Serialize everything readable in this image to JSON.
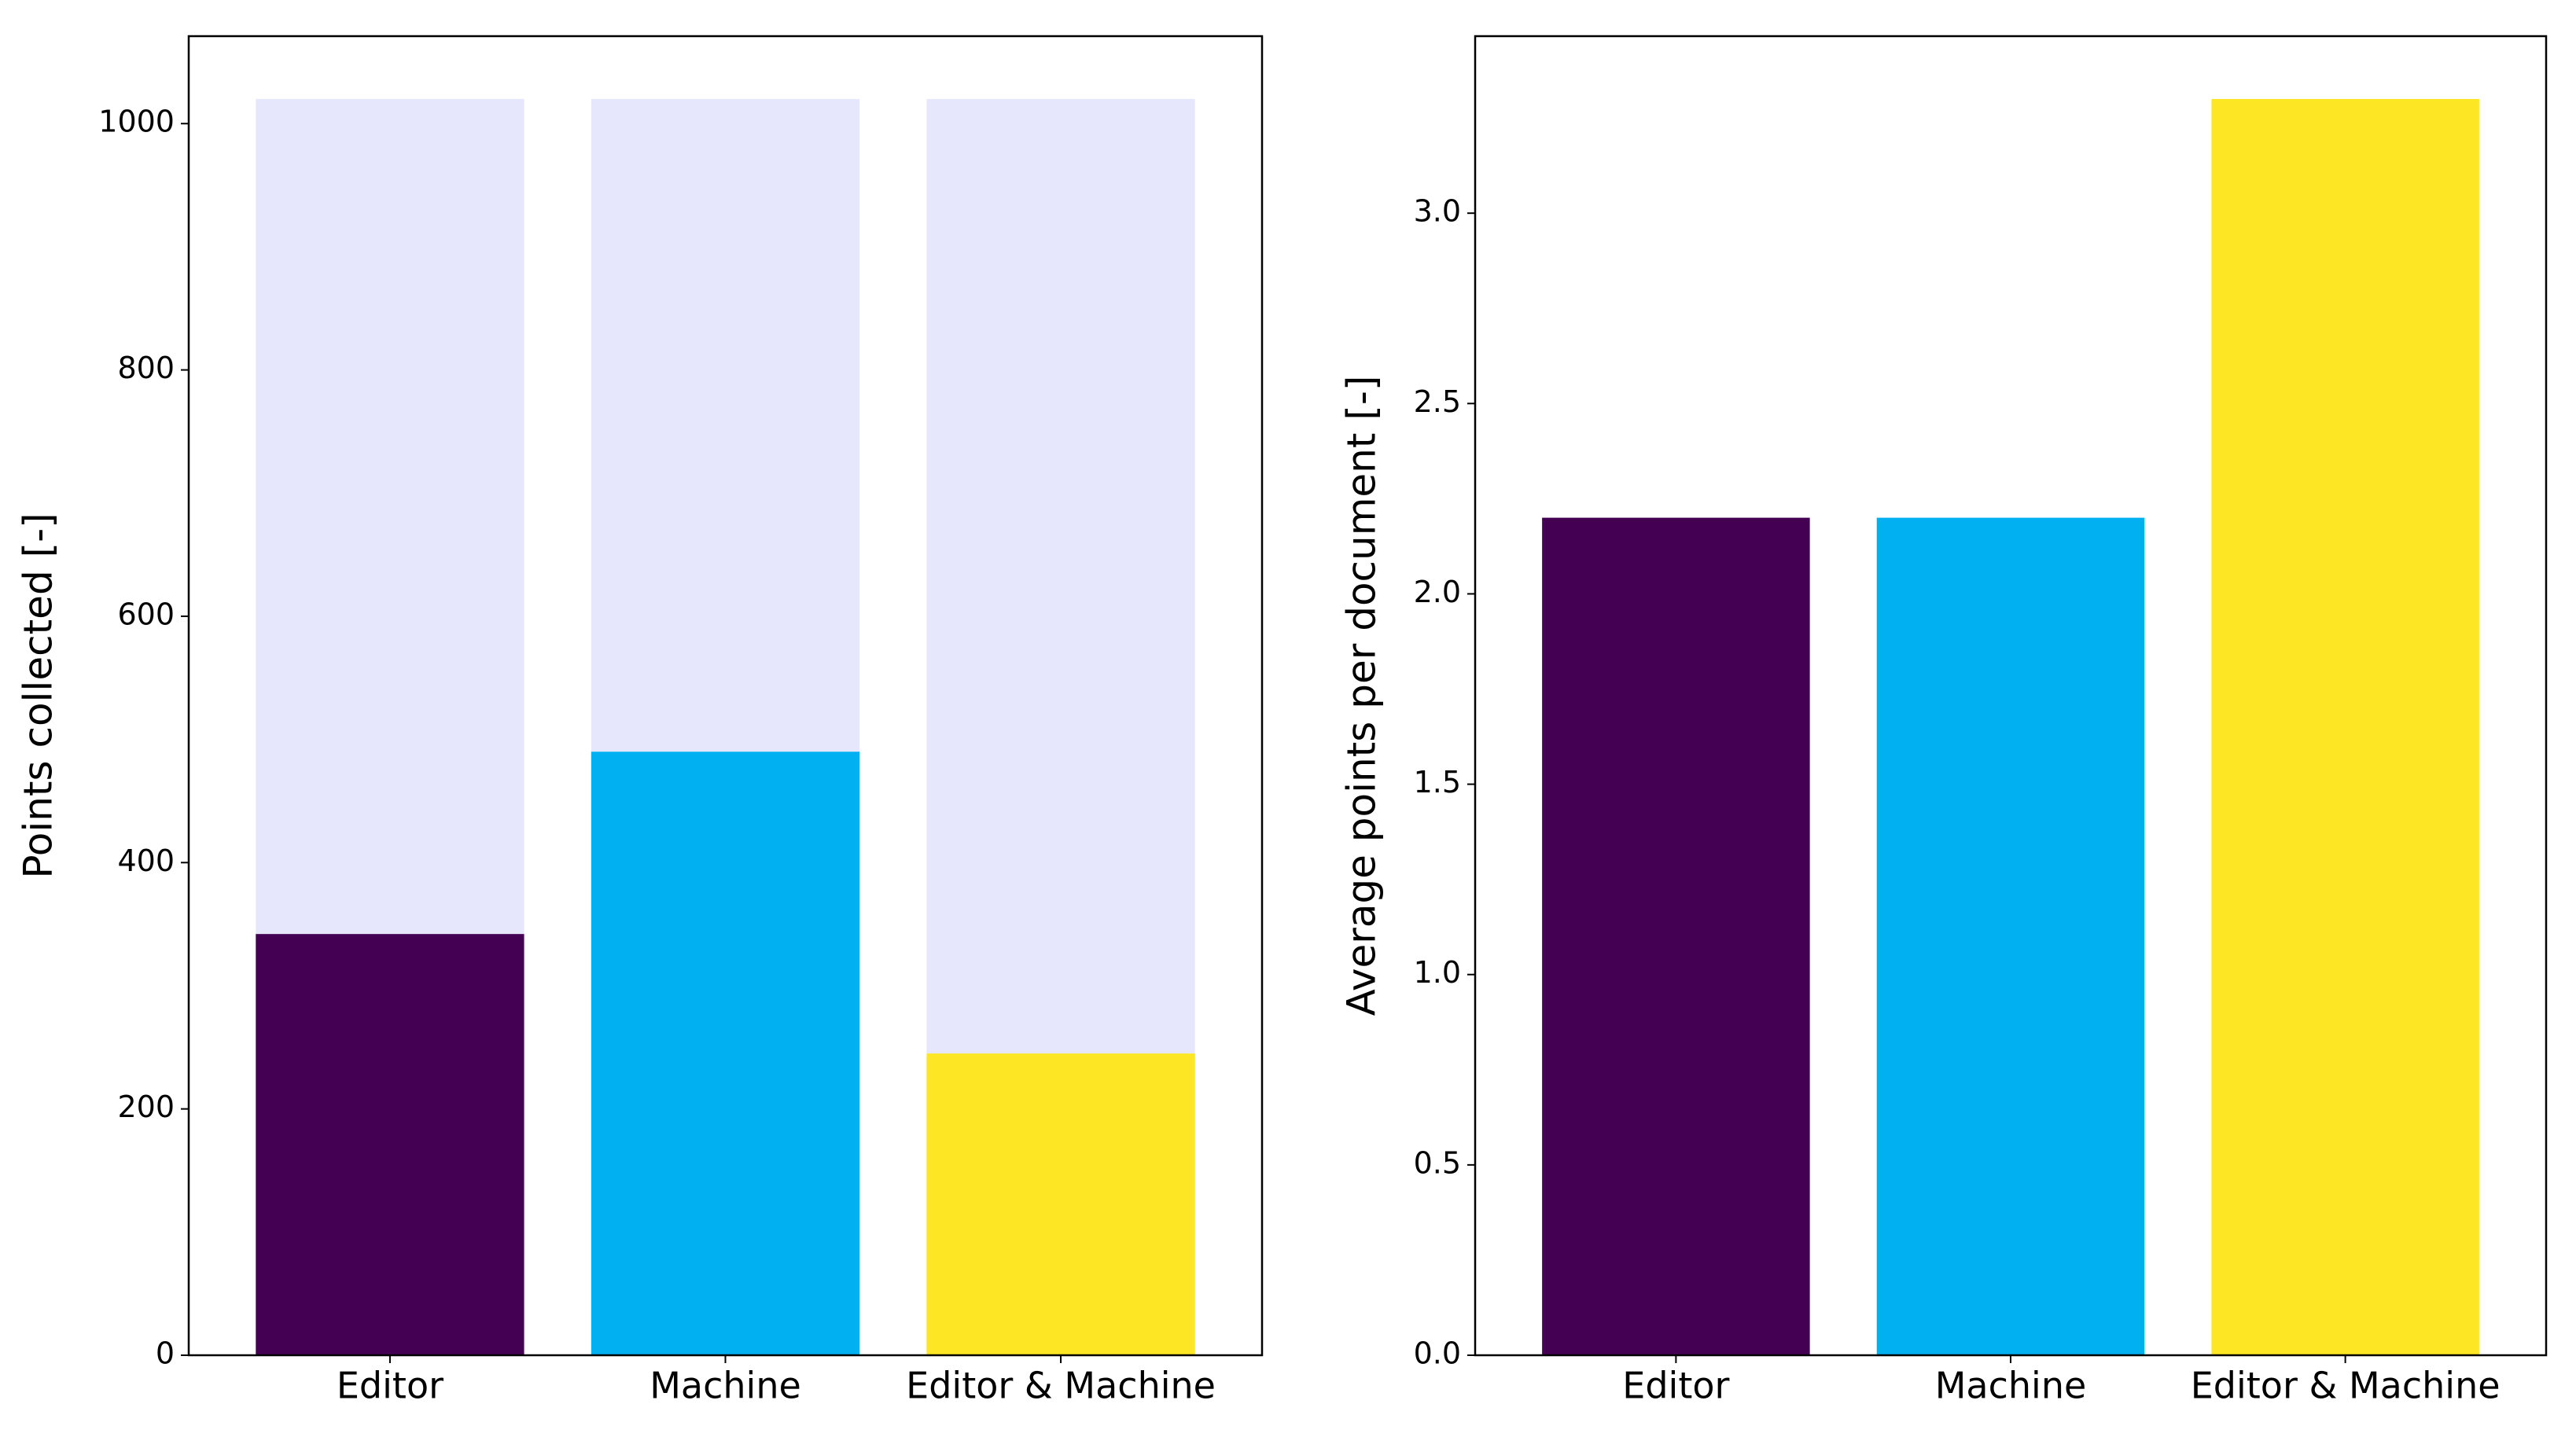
{
  "chart_data": [
    {
      "type": "bar",
      "ylabel": "Points collected [-]",
      "categories": [
        "Editor",
        "Machine",
        "Editor & Machine"
      ],
      "series": [
        {
          "color": "#e6e6fd",
          "values": [
            1020,
            1020,
            1020
          ]
        },
        {
          "color": [
            "#440154",
            "#00b0f0",
            "#fde725"
          ],
          "values": [
            342,
            490,
            245
          ]
        }
      ],
      "ylim": [
        0,
        1071
      ],
      "yticks": [
        0,
        200,
        400,
        600,
        800,
        1000
      ]
    },
    {
      "type": "bar",
      "ylabel": "Average points per document [-]",
      "categories": [
        "Editor",
        "Machine",
        "Editor & Machine"
      ],
      "series": [
        {
          "color": [
            "#440154",
            "#00b0f0",
            "#fde725"
          ],
          "values": [
            2.2,
            2.2,
            3.3
          ]
        }
      ],
      "ylim": [
        0,
        3.465
      ],
      "yticks": [
        {
          "value": 0,
          "label": "0.0"
        },
        0.5,
        {
          "value": 1,
          "label": "1.0"
        },
        1.5,
        {
          "value": 2,
          "label": "2.0"
        },
        2.5,
        {
          "value": 3,
          "label": "3.0"
        }
      ]
    }
  ]
}
